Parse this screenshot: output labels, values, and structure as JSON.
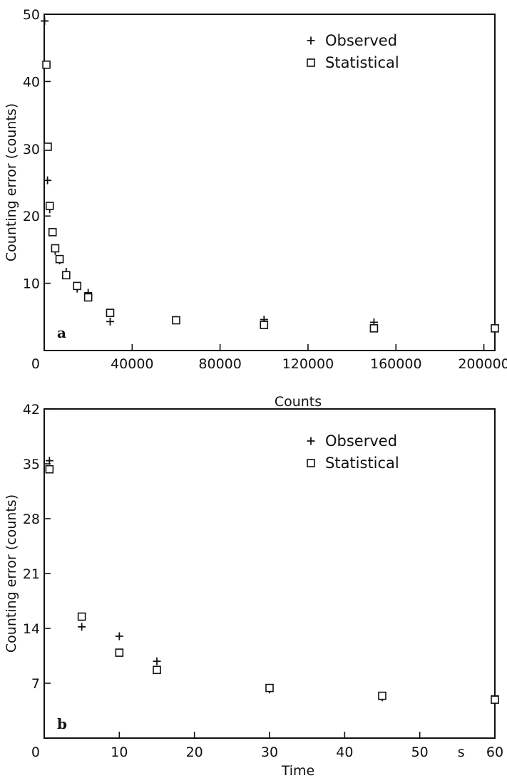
{
  "chart_data": [
    {
      "type": "scatter",
      "panel_label": "a",
      "xlabel": "Counts",
      "ylabel": "Counting error (counts)",
      "xlim": [
        0,
        205000
      ],
      "ylim": [
        0,
        50
      ],
      "xticks": [
        0,
        40000,
        80000,
        120000,
        160000,
        200000
      ],
      "xtick_labels": [
        "0",
        "40000",
        "80000",
        "120000",
        "160000",
        "200000"
      ],
      "yticks": [
        10,
        20,
        30,
        40,
        50
      ],
      "ytick_labels": [
        "10",
        "20",
        "30",
        "40",
        "50"
      ],
      "grid": false,
      "legend_position": "top-right",
      "series": [
        {
          "name": "Observed",
          "marker": "plus",
          "x": [
            200,
            1500,
            2500,
            3800,
            5000,
            7000,
            10000,
            15000,
            20000,
            30000,
            60000,
            100000,
            150000,
            205000
          ],
          "y": [
            49,
            25.3,
            21,
            17.6,
            14.8,
            13.4,
            11.7,
            9.2,
            8.6,
            4.3,
            4.5,
            4.6,
            4.2,
            3.4
          ]
        },
        {
          "name": "Statistical",
          "marker": "square",
          "x": [
            1000,
            1600,
            2500,
            3800,
            5000,
            7000,
            10000,
            15000,
            20000,
            30000,
            60000,
            100000,
            150000,
            205000
          ],
          "y": [
            42.5,
            30.3,
            21.5,
            17.6,
            15.2,
            13.6,
            11.2,
            9.6,
            7.9,
            5.6,
            4.5,
            3.8,
            3.3,
            3.3
          ]
        }
      ]
    },
    {
      "type": "scatter",
      "panel_label": "b",
      "xlabel": "Time",
      "xunit": "s",
      "ylabel": "Counting error (counts)",
      "xlim": [
        0,
        60
      ],
      "ylim": [
        0,
        42
      ],
      "xticks": [
        0,
        10,
        20,
        30,
        40,
        50,
        60
      ],
      "xtick_labels": [
        "0",
        "10",
        "20",
        "30",
        "40",
        "50",
        "60"
      ],
      "yticks": [
        7,
        14,
        21,
        28,
        35,
        42
      ],
      "ytick_labels": [
        "7",
        "14",
        "21",
        "28",
        "35",
        "42"
      ],
      "grid": false,
      "legend_position": "top-right",
      "series": [
        {
          "name": "Observed",
          "marker": "plus",
          "x": [
            0.7,
            5,
            10,
            15,
            30,
            45,
            60
          ],
          "y": [
            35.4,
            14.2,
            13.0,
            9.8,
            6.2,
            5.2,
            5.4
          ]
        },
        {
          "name": "Statistical",
          "marker": "square",
          "x": [
            0.7,
            5,
            10,
            15,
            30,
            45,
            60
          ],
          "y": [
            34.3,
            15.5,
            10.9,
            8.7,
            6.4,
            5.4,
            4.9
          ]
        }
      ]
    }
  ]
}
